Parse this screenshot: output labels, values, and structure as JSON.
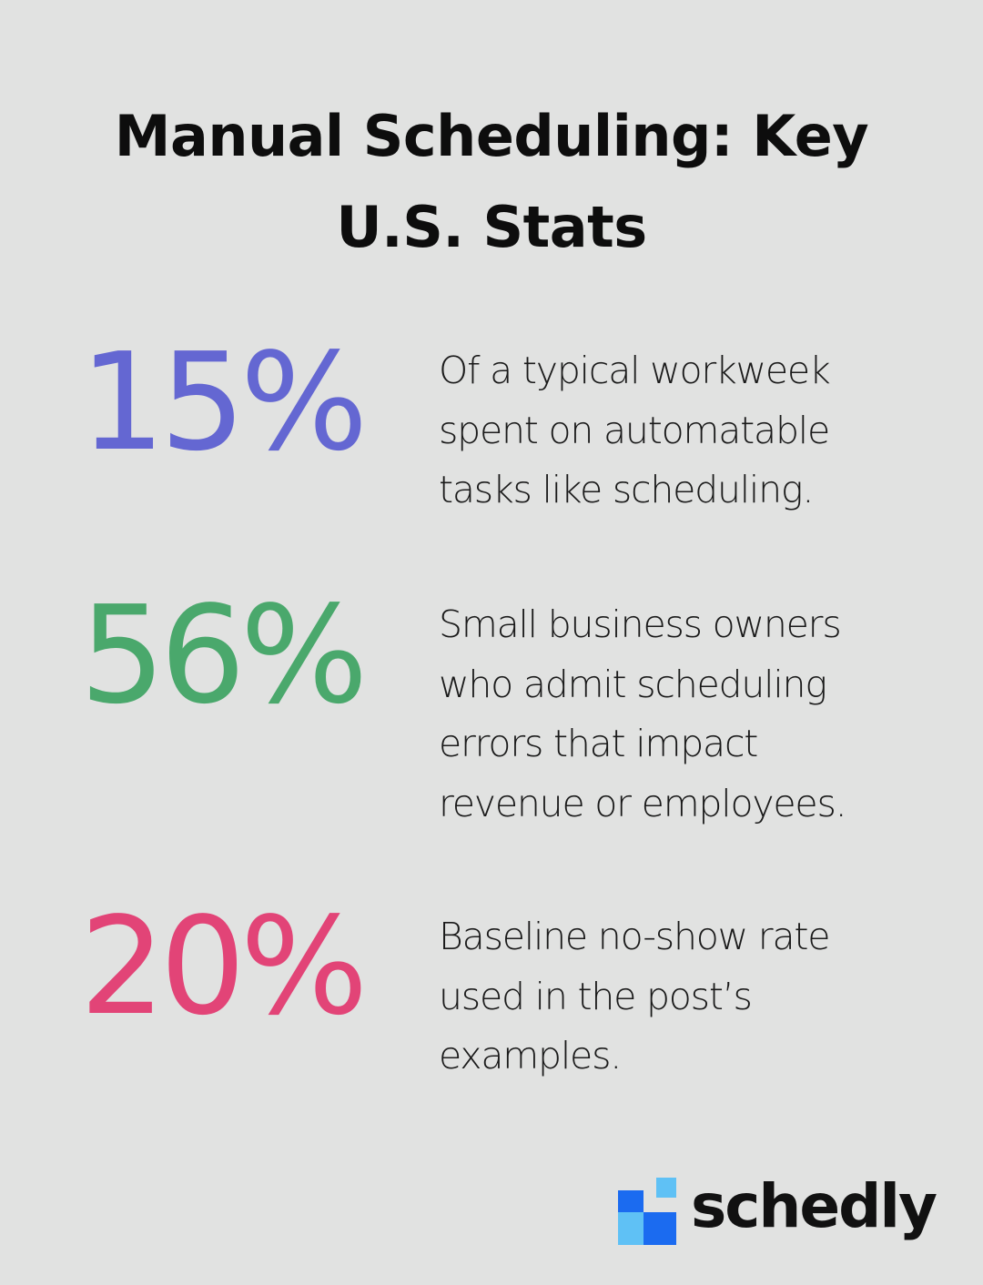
{
  "title": "Manual Scheduling: Key U.S. Stats",
  "stats": [
    {
      "value": "15%",
      "description": "Of a typical workweek spent on automatable tasks like scheduling.",
      "color": "#6467d2"
    },
    {
      "value": "56%",
      "description": "Small business owners who admit scheduling errors that impact revenue or employees.",
      "color": "#4aa86c"
    },
    {
      "value": "20%",
      "description": "Baseline no-show rate used in the post’s examples.",
      "color": "#e24477"
    }
  ],
  "logo": {
    "wordmark": "schedly",
    "icon": "schedly-logo-icon",
    "colors": {
      "dark_blue": "#1b6bf0",
      "light_blue": "#5fc1f5"
    }
  }
}
